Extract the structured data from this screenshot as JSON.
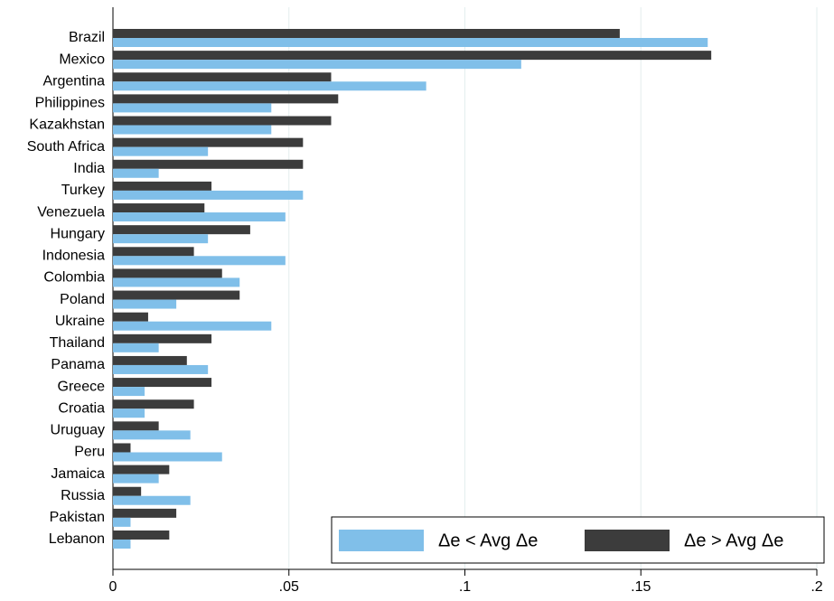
{
  "chart_data": {
    "type": "hbar",
    "categories": [
      "Brazil",
      "Mexico",
      "Argentina",
      "Philippines",
      "Kazakhstan",
      "South Africa",
      "India",
      "Turkey",
      "Venezuela",
      "Hungary",
      "Indonesia",
      "Colombia",
      "Poland",
      "Ukraine",
      "Thailand",
      "Panama",
      "Greece",
      "Croatia",
      "Uruguay",
      "Peru",
      "Jamaica",
      "Russia",
      "Pakistan",
      "Lebanon"
    ],
    "series": [
      {
        "name": "Δe < Avg Δe",
        "color": "#80bfe9",
        "values": [
          0.169,
          0.116,
          0.089,
          0.045,
          0.045,
          0.027,
          0.013,
          0.054,
          0.049,
          0.027,
          0.049,
          0.036,
          0.018,
          0.045,
          0.013,
          0.027,
          0.009,
          0.009,
          0.022,
          0.031,
          0.013,
          0.022,
          0.005,
          0.005
        ]
      },
      {
        "name": "Δe > Avg Δe",
        "color": "#3c3c3c",
        "values": [
          0.144,
          0.17,
          0.062,
          0.064,
          0.062,
          0.054,
          0.054,
          0.028,
          0.026,
          0.039,
          0.023,
          0.031,
          0.036,
          0.01,
          0.028,
          0.021,
          0.028,
          0.023,
          0.013,
          0.005,
          0.016,
          0.008,
          0.018,
          0.016
        ]
      }
    ],
    "xlim": [
      0,
      0.2
    ],
    "xticks": [
      0,
      {
        "value": 0.05,
        "label": ".05"
      },
      {
        "value": 0.1,
        "label": ".1"
      },
      {
        "value": 0.15,
        "label": ".15"
      },
      {
        "value": 0.2,
        "label": ".2"
      }
    ],
    "grid": true,
    "legend": "bottom-right"
  }
}
